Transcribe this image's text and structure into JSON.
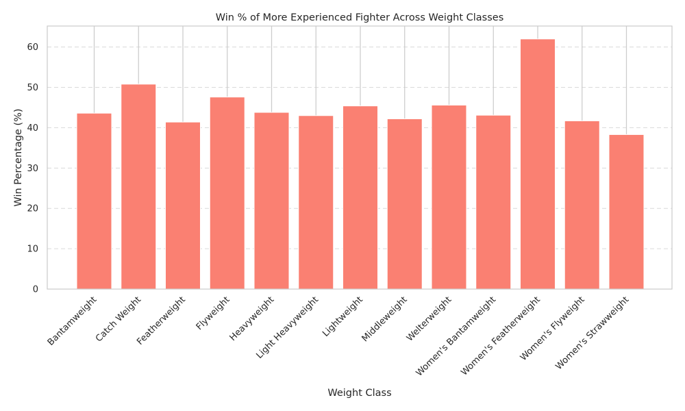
{
  "chart_data": {
    "type": "bar",
    "title": "Win % of More Experienced Fighter Across Weight Classes",
    "xlabel": "Weight Class",
    "ylabel": "Win Percentage (%)",
    "categories": [
      "Bantamweight",
      "Catch Weight",
      "Featherweight",
      "Flyweight",
      "Heavyweight",
      "Light Heavyweight",
      "Lightweight",
      "Middleweight",
      "Welterweight",
      "Women's Bantamweight",
      "Women's Featherweight",
      "Women's Flyweight",
      "Women's Strawweight"
    ],
    "values": [
      43.6,
      50.8,
      41.4,
      47.6,
      43.8,
      43.0,
      45.4,
      42.2,
      45.6,
      43.1,
      62.0,
      41.7,
      38.3
    ],
    "ylim": [
      0,
      65.2
    ],
    "yticks": [
      0,
      10,
      20,
      30,
      40,
      50,
      60
    ],
    "grid": "on",
    "bar_color": "#fa8072"
  }
}
